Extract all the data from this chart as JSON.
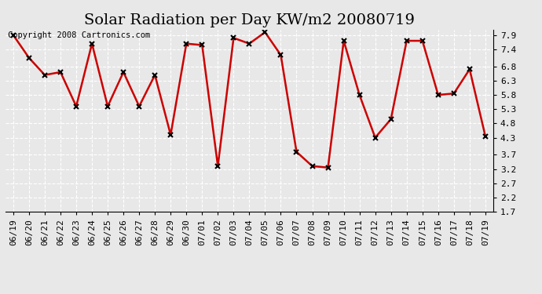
{
  "title": "Solar Radiation per Day KW/m2 20080719",
  "copyright_text": "Copyright 2008 Cartronics.com",
  "dates": [
    "06/19",
    "06/20",
    "06/21",
    "06/22",
    "06/23",
    "06/24",
    "06/25",
    "06/26",
    "06/27",
    "06/28",
    "06/29",
    "06/30",
    "07/01",
    "07/02",
    "07/03",
    "07/04",
    "07/05",
    "07/06",
    "07/07",
    "07/08",
    "07/09",
    "07/10",
    "07/11",
    "07/12",
    "07/13",
    "07/14",
    "07/15",
    "07/16",
    "07/17",
    "07/18",
    "07/19"
  ],
  "values": [
    7.9,
    7.1,
    6.5,
    6.6,
    5.4,
    7.6,
    5.4,
    6.6,
    5.4,
    6.5,
    4.4,
    7.6,
    7.55,
    3.3,
    7.8,
    7.6,
    8.0,
    7.2,
    3.8,
    3.3,
    3.25,
    7.7,
    5.8,
    4.3,
    4.95,
    7.7,
    7.7,
    5.8,
    5.85,
    6.7,
    4.35
  ],
  "line_color": "#cc0000",
  "marker": "x",
  "marker_color": "#000000",
  "marker_size": 5,
  "marker_linewidth": 1.5,
  "line_width": 1.8,
  "background_color": "#e8e8e8",
  "plot_bg_color": "#e8e8e8",
  "grid_color": "#ffffff",
  "ylim": [
    1.7,
    8.1
  ],
  "yticks": [
    1.7,
    2.2,
    2.7,
    3.2,
    3.7,
    4.3,
    4.8,
    5.3,
    5.8,
    6.3,
    6.8,
    7.4,
    7.9
  ],
  "title_fontsize": 14,
  "tick_fontsize": 8,
  "copyright_fontsize": 7.5
}
